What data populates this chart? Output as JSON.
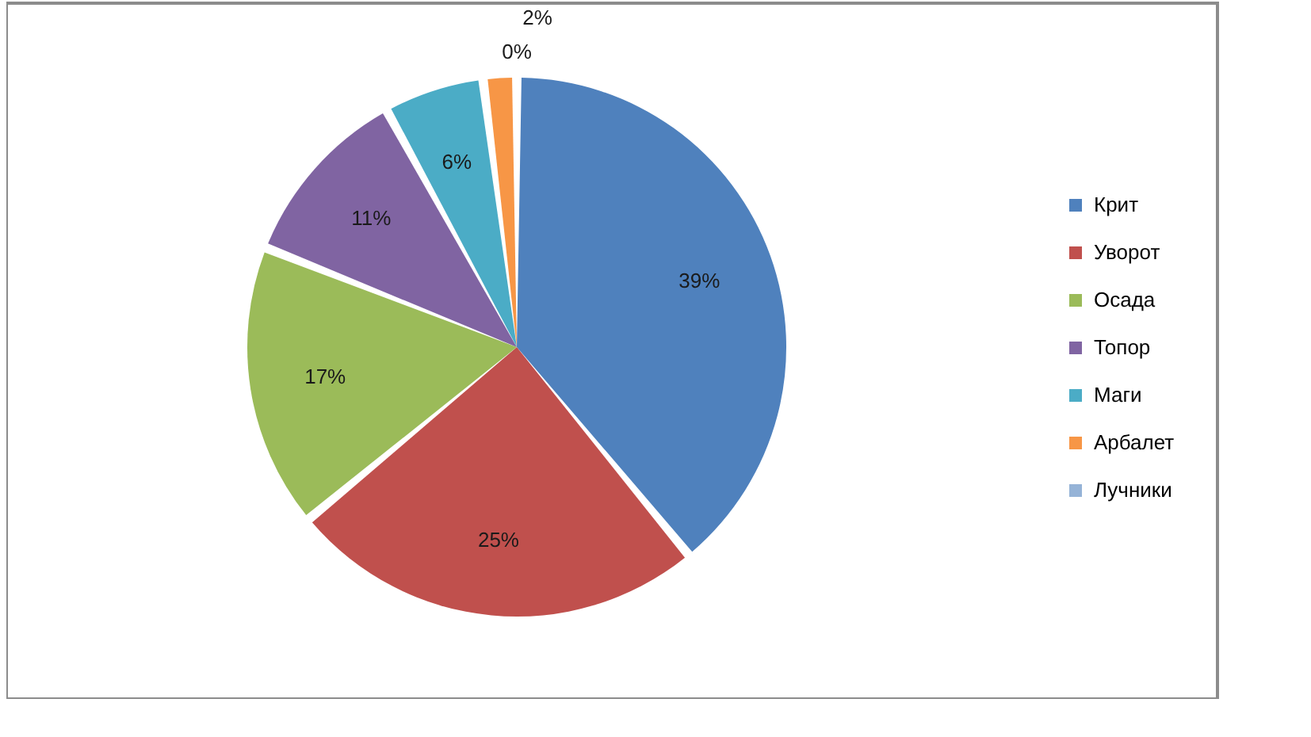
{
  "chart_data": {
    "type": "pie",
    "categories": [
      "Крит",
      "Уворот",
      "Осада",
      "Топор",
      "Маги",
      "Арбалет",
      "Лучники"
    ],
    "values": [
      39,
      25,
      17,
      11,
      6,
      2,
      0
    ],
    "colors": [
      "#4f81bd",
      "#c0504d",
      "#9bbb59",
      "#8064a2",
      "#4bacc6",
      "#f79646",
      "#95b3d7"
    ],
    "value_labels": [
      "39%",
      "25%",
      "17%",
      "11%",
      "6%",
      "2%",
      "0%"
    ],
    "legend": "right"
  }
}
